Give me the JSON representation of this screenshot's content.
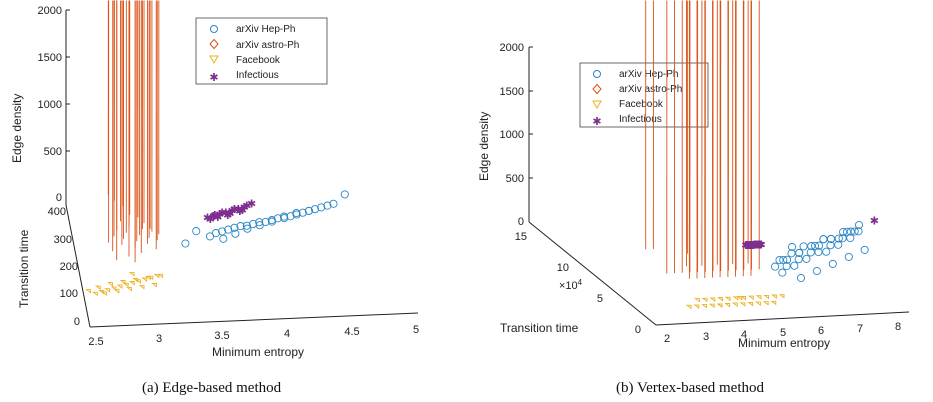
{
  "colors": {
    "hep": "#2b86c5",
    "astro": "#d95319",
    "facebook": "#edb120",
    "infectious": "#7e2f8e"
  },
  "chart_data": [
    {
      "type": "scatter",
      "caption": "(a) Edge-based method",
      "xlabel": "Minimum entropy",
      "ylabel": "Transition time",
      "zlabel": "Edge density",
      "xticks": [
        "2.5",
        "3",
        "3.5",
        "4",
        "4.5",
        "5"
      ],
      "yticks": [
        "0",
        "100",
        "200",
        "300",
        "400"
      ],
      "zticks": [
        "0",
        "500",
        "1000",
        "1500",
        "2000"
      ],
      "xlim": [
        2.5,
        5
      ],
      "ylim": [
        0,
        400
      ],
      "zlim": [
        0,
        2000
      ],
      "legend": [
        "arXiv Hep-Ph",
        "arXiv astro-Ph",
        "Facebook",
        "Infectious"
      ],
      "legend_position": "top",
      "series": [
        {
          "name": "arXiv Hep-Ph",
          "marker": "circle",
          "color": "hep",
          "x": [
            3.3,
            3.4,
            3.5,
            3.55,
            3.6,
            3.65,
            3.7,
            3.75,
            3.8,
            3.85,
            3.9,
            3.95,
            4.0,
            4.05,
            4.1,
            4.15,
            4.2,
            4.25,
            4.3,
            4.35,
            4.4,
            4.45,
            3.6,
            3.7,
            3.8,
            3.9,
            4.0,
            4.1,
            4.2,
            4.3,
            4.5,
            4.6
          ],
          "y": [
            260,
            300,
            280,
            290,
            295,
            300,
            305,
            310,
            310,
            315,
            320,
            320,
            325,
            330,
            330,
            335,
            340,
            345,
            350,
            355,
            360,
            365,
            270,
            285,
            300,
            310,
            320,
            335,
            345,
            350,
            370,
            400
          ]
        },
        {
          "name": "arXiv astro-Ph",
          "marker": "diamond",
          "color": "astro",
          "x": [
            2.7,
            2.72,
            2.75,
            2.78,
            2.8,
            2.82,
            2.85,
            2.88,
            2.9,
            2.92,
            2.95,
            2.98,
            3.0,
            3.02,
            3.05,
            3.08,
            3.1,
            2.76,
            2.8,
            2.86,
            2.9,
            2.96,
            3.0,
            3.04,
            2.74,
            2.84,
            2.94,
            3.06,
            2.9,
            2.82,
            2.88
          ],
          "y": [
            260,
            230,
            280,
            300,
            250,
            270,
            290,
            310,
            240,
            260,
            280,
            300,
            250,
            270,
            290,
            260,
            280,
            420,
            400,
            380,
            360,
            340,
            320,
            300,
            200,
            210,
            220,
            230,
            350,
            330,
            190
          ]
        },
        {
          "name": "Facebook",
          "marker": "triangle-down",
          "color": "facebook",
          "x": [
            2.5,
            2.55,
            2.6,
            2.65,
            2.7,
            2.75,
            2.8,
            2.85,
            2.9,
            2.95,
            3.0,
            3.05,
            2.62,
            2.72,
            2.82,
            2.92,
            3.02,
            2.68,
            2.78,
            2.88,
            2.98,
            3.08,
            2.58,
            2.86
          ],
          "y": [
            110,
            100,
            105,
            110,
            115,
            120,
            125,
            130,
            135,
            140,
            145,
            150,
            100,
            105,
            110,
            115,
            120,
            130,
            135,
            140,
            145,
            150,
            120,
            160
          ]
        },
        {
          "name": "Infectious",
          "marker": "star",
          "color": "infectious",
          "x": [
            3.5,
            3.55,
            3.6,
            3.65,
            3.7,
            3.75,
            3.8,
            3.58,
            3.68,
            3.78,
            3.62,
            3.72,
            3.52,
            3.82,
            3.66,
            3.76,
            3.56,
            3.86
          ],
          "y": [
            330,
            335,
            340,
            345,
            350,
            355,
            360,
            330,
            340,
            350,
            345,
            355,
            325,
            365,
            335,
            348,
            338,
            370
          ]
        }
      ]
    },
    {
      "type": "scatter",
      "caption": "(b) Vertex-based method",
      "xlabel": "Minimum entropy",
      "ylabel": "Transition time",
      "zlabel": "Edge density",
      "y_multiplier": "×10^4",
      "xticks": [
        "2",
        "3",
        "4",
        "5",
        "6",
        "7",
        "8"
      ],
      "yticks": [
        "0",
        "5",
        "10",
        "15"
      ],
      "zticks": [
        "0",
        "500",
        "1000",
        "1500",
        "2000"
      ],
      "xlim": [
        2,
        8.5
      ],
      "ylim": [
        0,
        15
      ],
      "zlim": [
        0,
        2000
      ],
      "legend": [
        "arXiv Hep-Ph",
        "arXiv astro-Ph",
        "Facebook",
        "Infectious"
      ],
      "legend_position": "top-left",
      "series": [
        {
          "name": "arXiv Hep-Ph",
          "marker": "circle",
          "color": "hep",
          "x": [
            5.5,
            5.7,
            5.9,
            6.1,
            6.3,
            6.5,
            6.7,
            6.9,
            7.1,
            7.3,
            7.5,
            7.7,
            7.9,
            8.1,
            5.6,
            5.8,
            6.0,
            6.2,
            6.4,
            6.6,
            6.8,
            7.0,
            7.2,
            7.4,
            7.6,
            7.8,
            8.0,
            6.0,
            6.5,
            7.0,
            7.5,
            8.0,
            5.8,
            6.3,
            6.8,
            7.3,
            7.8,
            8.2,
            6.2,
            7.1
          ],
          "y": [
            8,
            9,
            9,
            10,
            10,
            11,
            11,
            11,
            12,
            12,
            12,
            13,
            13,
            13,
            7,
            8,
            8,
            9,
            9,
            10,
            10,
            10,
            11,
            11,
            12,
            12,
            13,
            6,
            7,
            8,
            9,
            10,
            9,
            10,
            11,
            12,
            13,
            14,
            11,
            12
          ]
        },
        {
          "name": "arXiv astro-Ph",
          "marker": "diamond",
          "color": "astro",
          "x": [
            2.6,
            2.8,
            3.0,
            3.2,
            3.4,
            3.6,
            3.8,
            4.0,
            4.2,
            4.4,
            4.6,
            4.8,
            5.0,
            3.1,
            3.3,
            3.5,
            3.7,
            3.9,
            4.1,
            4.3,
            4.5,
            4.7,
            3.2,
            3.6,
            4.0,
            4.4,
            4.8,
            2.4,
            2.6,
            3.4
          ],
          "y": [
            7,
            7,
            7,
            7,
            7,
            7,
            7,
            7,
            7,
            7,
            7,
            7,
            7,
            6,
            6,
            6,
            6,
            6,
            6,
            6,
            6,
            6,
            8,
            8,
            8,
            8,
            8,
            11,
            11,
            10
          ]
        },
        {
          "name": "Facebook",
          "marker": "triangle-down",
          "color": "facebook",
          "x": [
            2.8,
            3.0,
            3.2,
            3.4,
            3.6,
            3.8,
            4.0,
            4.2,
            4.4,
            4.6,
            4.8,
            5.0,
            3.1,
            3.3,
            3.5,
            3.7,
            3.9,
            4.1,
            4.3,
            4.5,
            4.7,
            4.9,
            5.1,
            5.3,
            3.6,
            4.2
          ],
          "y": [
            2,
            2,
            2,
            2,
            2,
            2,
            2,
            2,
            2,
            2,
            2,
            2,
            3,
            3,
            3,
            3,
            3,
            3,
            3,
            3,
            3,
            3,
            3,
            3,
            2,
            3
          ]
        },
        {
          "name": "Infectious",
          "marker": "star",
          "color": "infectious",
          "x": [
            5.0,
            5.05,
            5.1,
            5.15,
            5.2,
            5.25,
            5.3,
            5.35,
            5.4,
            5.02,
            5.12,
            5.22,
            5.32,
            5.08,
            5.18,
            5.28,
            5.38,
            8.6
          ],
          "y": [
            11,
            11,
            11,
            11,
            11,
            11,
            11,
            11,
            11,
            11,
            11,
            11,
            11,
            11,
            11,
            11,
            11,
            14
          ]
        }
      ]
    }
  ]
}
